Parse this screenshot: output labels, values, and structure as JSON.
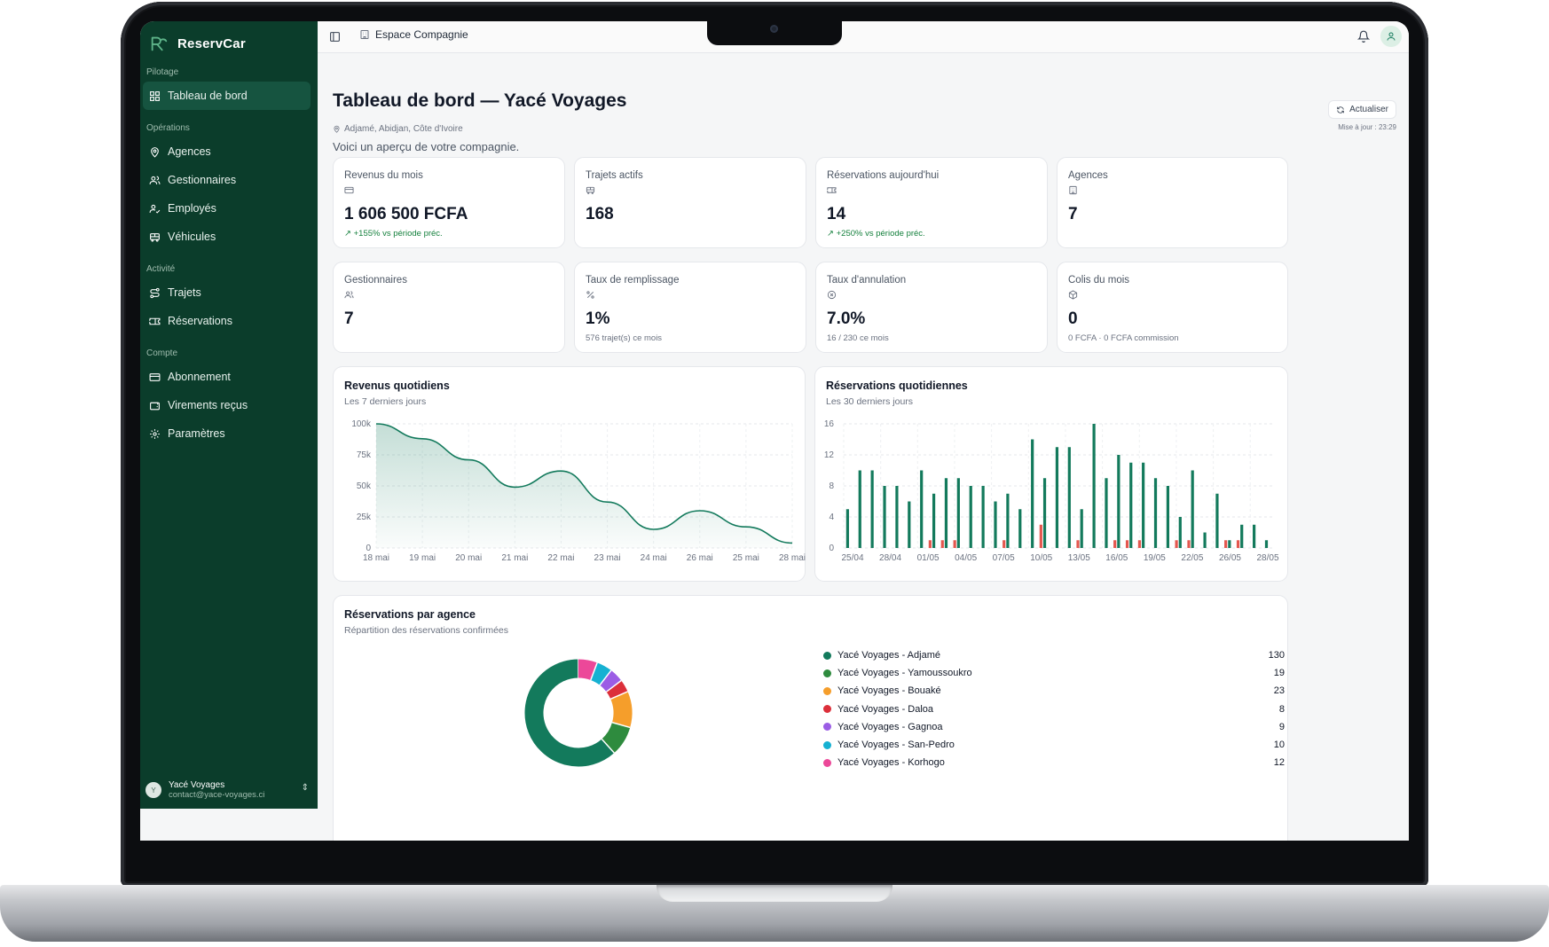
{
  "brand": {
    "name": "ReservCar"
  },
  "sidebar": {
    "sections": [
      {
        "label": "Pilotage",
        "items": [
          {
            "label": "Tableau de bord",
            "icon": "grid-icon",
            "active": true
          }
        ]
      },
      {
        "label": "Opérations",
        "items": [
          {
            "label": "Agences",
            "icon": "map-pin-icon"
          },
          {
            "label": "Gestionnaires",
            "icon": "users-icon"
          },
          {
            "label": "Employés",
            "icon": "user-check-icon"
          },
          {
            "label": "Véhicules",
            "icon": "bus-icon"
          }
        ]
      },
      {
        "label": "Activité",
        "items": [
          {
            "label": "Trajets",
            "icon": "route-icon"
          },
          {
            "label": "Réservations",
            "icon": "ticket-icon"
          }
        ]
      },
      {
        "label": "Compte",
        "items": [
          {
            "label": "Abonnement",
            "icon": "credit-card-icon"
          },
          {
            "label": "Virements reçus",
            "icon": "wallet-icon"
          },
          {
            "label": "Paramètres",
            "icon": "gear-icon"
          }
        ]
      }
    ],
    "user": {
      "initial": "Y",
      "name": "Yacé Voyages",
      "email": "contact@yace-voyages.ci"
    }
  },
  "topbar": {
    "breadcrumb": "Espace Compagnie"
  },
  "header": {
    "title": "Tableau de bord — Yacé Voyages",
    "location": "Adjamé, Abidjan, Côte d'Ivoire",
    "subtitle": "Voici un aperçu de votre compagnie.",
    "refresh_label": "Actualiser",
    "updated": "Mise à jour : 23:29"
  },
  "stats": [
    {
      "label": "Revenus du mois",
      "icon": "credit-card-icon",
      "value": "1 606 500 FCFA",
      "sub": "+155% vs période préc.",
      "trend": "up"
    },
    {
      "label": "Trajets actifs",
      "icon": "bus-icon",
      "value": "168",
      "sub": "",
      "trend": ""
    },
    {
      "label": "Réservations aujourd'hui",
      "icon": "ticket-icon",
      "value": "14",
      "sub": "+250% vs période préc.",
      "trend": "up"
    },
    {
      "label": "Agences",
      "icon": "building-icon",
      "value": "7",
      "sub": "",
      "trend": ""
    },
    {
      "label": "Gestionnaires",
      "icon": "users-icon",
      "value": "7",
      "sub": "",
      "trend": ""
    },
    {
      "label": "Taux de remplissage",
      "icon": "percent-icon",
      "value": "1%",
      "sub": "576 trajet(s) ce mois",
      "trend": ""
    },
    {
      "label": "Taux d'annulation",
      "icon": "x-circle-icon",
      "value": "7.0%",
      "sub": "16 / 230 ce mois",
      "trend": ""
    },
    {
      "label": "Colis du mois",
      "icon": "package-icon",
      "value": "0",
      "sub": "0 FCFA · 0 FCFA commission",
      "trend": ""
    }
  ],
  "colors": {
    "primary": "#137a5c",
    "sidebar": "#0b3d2b",
    "cancel": "#e4574f"
  },
  "chart_data": [
    {
      "type": "area",
      "title": "Revenus quotidiens",
      "subtitle": "Les 7 derniers jours",
      "categories": [
        "18 mai",
        "19 mai",
        "20 mai",
        "21 mai",
        "22 mai",
        "23 mai",
        "24 mai",
        "26 mai",
        "25 mai",
        "28 mai"
      ],
      "values": [
        100000,
        88000,
        71000,
        49000,
        62000,
        37000,
        15000,
        30000,
        17000,
        4000
      ],
      "y_ticks": [
        "100k",
        "75k",
        "50k",
        "25k",
        "0"
      ],
      "ylim": [
        0,
        100000
      ],
      "grid": true
    },
    {
      "type": "bar",
      "title": "Réservations quotidiennes",
      "subtitle": "Les 30 derniers jours",
      "x_ticks": [
        "25/04",
        "28/04",
        "01/05",
        "04/05",
        "07/05",
        "10/05",
        "13/05",
        "16/05",
        "19/05",
        "22/05",
        "26/05",
        "28/05"
      ],
      "series": [
        {
          "values": [
            5,
            10,
            10,
            8,
            8,
            6,
            10,
            7,
            9,
            9,
            8,
            8,
            6,
            7,
            5,
            14,
            9,
            13,
            13,
            5,
            16,
            9,
            12,
            11,
            11,
            9,
            8,
            4,
            10,
            2,
            7,
            1,
            3,
            3,
            1
          ]
        },
        {
          "values": [
            0,
            0,
            0,
            0,
            0,
            0,
            0,
            1,
            1,
            1,
            0,
            0,
            0,
            1,
            0,
            0,
            3,
            0,
            0,
            1,
            0,
            0,
            1,
            1,
            1,
            0,
            0,
            1,
            1,
            0,
            0,
            1,
            1,
            0,
            0
          ]
        }
      ],
      "y_ticks": [
        "16",
        "12",
        "8",
        "4",
        "0"
      ],
      "ylim": [
        0,
        16
      ],
      "grid": true
    },
    {
      "type": "pie",
      "title": "Réservations par agence",
      "subtitle": "Répartition des réservations confirmées",
      "slices": [
        {
          "label": "Yacé Voyages - Adjamé",
          "value": 130,
          "color": "#137a5c"
        },
        {
          "label": "Yacé Voyages - Yamoussoukro",
          "value": 19,
          "color": "#2e8b3e"
        },
        {
          "label": "Yacé Voyages - Bouaké",
          "value": 23,
          "color": "#f59e2b"
        },
        {
          "label": "Yacé Voyages - Daloa",
          "value": 8,
          "color": "#dc2f3a"
        },
        {
          "label": "Yacé Voyages - Gagnoa",
          "value": 9,
          "color": "#9b5de5"
        },
        {
          "label": "Yacé Voyages - San-Pedro",
          "value": 10,
          "color": "#16b1d2"
        },
        {
          "label": "Yacé Voyages - Korhogo",
          "value": 12,
          "color": "#ec4899"
        }
      ]
    }
  ]
}
